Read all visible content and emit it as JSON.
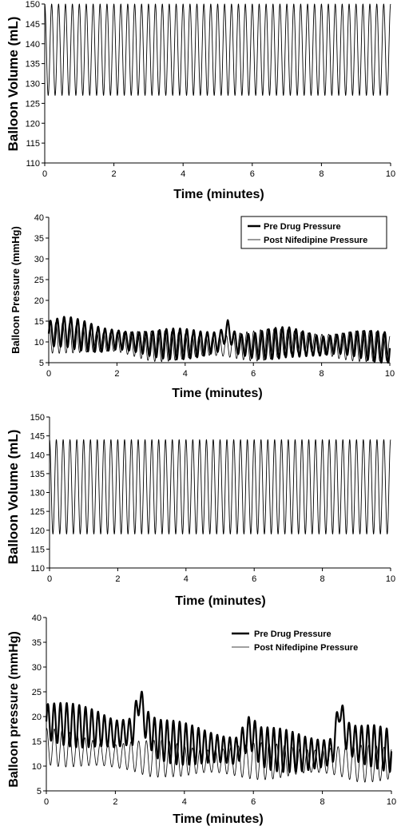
{
  "chart_data": [
    {
      "type": "line",
      "xlabel": "Time (minutes)",
      "ylabel": "Balloon Volume (mL)",
      "xlim": [
        0,
        10
      ],
      "ylim": [
        110,
        150
      ],
      "xticks": [
        "0",
        "2",
        "4",
        "6",
        "8",
        "10"
      ],
      "yticks": [
        "110",
        "115",
        "120",
        "125",
        "130",
        "135",
        "140",
        "145",
        "150"
      ],
      "grid": false,
      "series": [
        {
          "name": "",
          "description": "sinusoidal volume oscillation",
          "min": 127,
          "max": 150,
          "cycles": 50,
          "color": "#000000"
        }
      ]
    },
    {
      "type": "line",
      "xlabel": "Time (minutes)",
      "ylabel": "Balloon Pressure (mmHg)",
      "xlim": [
        0,
        10
      ],
      "ylim": [
        5,
        40
      ],
      "xticks": [
        "0",
        "2",
        "4",
        "6",
        "8",
        "10"
      ],
      "yticks": [
        "5",
        "10",
        "15",
        "20",
        "25",
        "30",
        "35",
        "40"
      ],
      "legend": "top-right",
      "grid": false,
      "series": [
        {
          "name": "Pre Drug Pressure",
          "color": "#000000",
          "style": "thick",
          "x": [
            0,
            0.5,
            1,
            1.5,
            2,
            2.5,
            3,
            3.5,
            4,
            4.5,
            5,
            5.25,
            5.5,
            6,
            6.5,
            7,
            7.5,
            8,
            8.5,
            9,
            9.5,
            10
          ],
          "y": [
            12,
            12.5,
            11.5,
            10.5,
            10.5,
            10,
            9.5,
            9.5,
            9.5,
            9.5,
            10,
            13,
            9.5,
            9,
            9.5,
            10,
            9.5,
            9,
            9.5,
            9.5,
            9,
            8.5
          ],
          "amplitude": 3,
          "cycles": 50
        },
        {
          "name": "Post Nifedipine Pressure",
          "color": "#000000",
          "style": "thin",
          "x": [
            0,
            0.5,
            1,
            1.5,
            2,
            2.5,
            3,
            3.5,
            4,
            4.5,
            5,
            5.5,
            6,
            6.5,
            7,
            7.5,
            8,
            8.5,
            9,
            9.5,
            10
          ],
          "y": [
            11,
            11,
            10.5,
            10,
            10,
            9.5,
            9,
            9,
            9,
            9,
            9,
            9,
            9,
            9.5,
            10,
            10,
            9.5,
            9,
            9,
            9,
            8.5
          ],
          "amplitude": 3,
          "cycles": 50
        }
      ]
    },
    {
      "type": "line",
      "xlabel": "Time (minutes)",
      "ylabel": "Balloon Volume (mL)",
      "xlim": [
        0,
        10
      ],
      "ylim": [
        110,
        150
      ],
      "xticks": [
        "0",
        "2",
        "4",
        "6",
        "8",
        "10"
      ],
      "yticks": [
        "110",
        "115",
        "120",
        "125",
        "130",
        "135",
        "140",
        "145",
        "150"
      ],
      "grid": false,
      "series": [
        {
          "name": "",
          "description": "sinusoidal volume oscillation",
          "min": 119,
          "max": 144,
          "cycles": 50,
          "color": "#000000"
        }
      ]
    },
    {
      "type": "line",
      "xlabel": "Time (minutes)",
      "ylabel": "Balloon pressure (mmHg)",
      "xlim": [
        0,
        10
      ],
      "ylim": [
        5,
        40
      ],
      "xticks": [
        "0",
        "2",
        "4",
        "6",
        "8",
        "10"
      ],
      "yticks": [
        "5",
        "10",
        "15",
        "20",
        "25",
        "30",
        "35",
        "40"
      ],
      "legend": "top-right",
      "grid": false,
      "series": [
        {
          "name": "Pre Drug Pressure",
          "color": "#000000",
          "style": "thick",
          "x": [
            0,
            0.5,
            1,
            1.5,
            2,
            2.5,
            2.7,
            2.9,
            3.2,
            3.5,
            4,
            4.5,
            5,
            5.5,
            5.9,
            6.2,
            6.5,
            7,
            7.5,
            8,
            8.3,
            8.5,
            8.7,
            9,
            9.5,
            10
          ],
          "y": [
            19,
            18.5,
            18,
            17.5,
            16.5,
            17,
            24,
            18,
            15.5,
            15,
            14.5,
            14,
            13.5,
            13,
            17,
            14,
            13.5,
            13,
            12.5,
            12.5,
            13,
            22,
            16,
            14.5,
            14,
            13
          ],
          "amplitude": 3.5,
          "cycles": 55
        },
        {
          "name": "Post Nifedipine Pressure",
          "color": "#000000",
          "style": "thin",
          "x": [
            0,
            0.5,
            1,
            1.5,
            2,
            2.5,
            3,
            3.5,
            4,
            4.5,
            5,
            5.5,
            6,
            6.5,
            7,
            7.5,
            8,
            8.5,
            9,
            9.5,
            10
          ],
          "y": [
            14,
            13.5,
            13,
            12.5,
            12,
            12,
            11.5,
            11.5,
            11,
            11,
            11,
            11,
            11,
            11,
            11,
            11,
            11,
            11,
            10.5,
            10.5,
            10.5
          ],
          "amplitude": 3,
          "cycles": 45
        }
      ]
    }
  ]
}
